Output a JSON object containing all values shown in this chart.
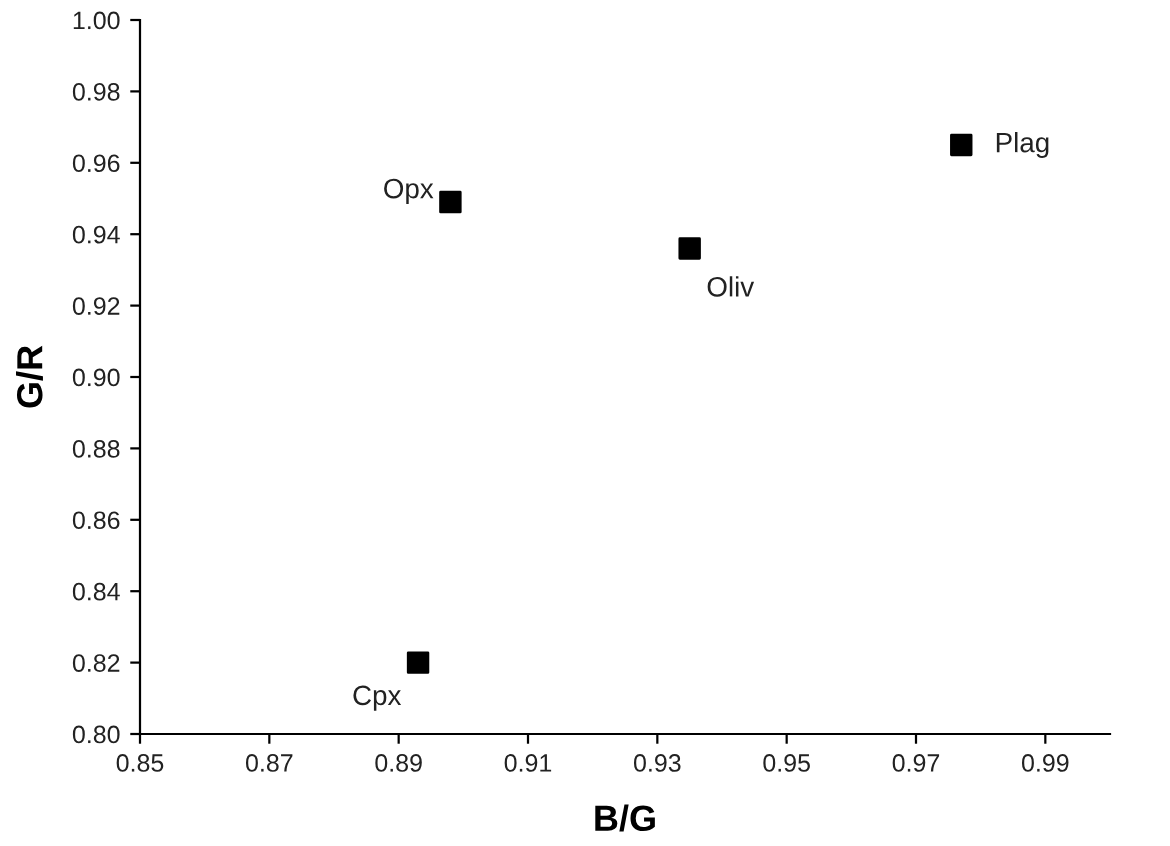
{
  "chart_data": {
    "type": "scatter",
    "xlabel": "B/G",
    "ylabel": "G/R",
    "x": [
      0.977,
      0.898,
      0.935,
      0.893
    ],
    "series": [
      {
        "color": "#000000",
        "values": [
          0.965,
          0.949,
          0.936,
          0.82
        ]
      }
    ],
    "marker": "square",
    "xlim": [
      0.85,
      1.0
    ],
    "xticks": [
      0.85,
      0.87,
      0.89,
      0.91,
      0.93,
      0.95,
      0.97,
      0.99
    ],
    "ylim": [
      0.8,
      1.0
    ],
    "yticks": [
      {
        "value": 0.8,
        "label": "0.80"
      },
      0.82,
      0.84,
      0.86,
      0.88,
      {
        "value": 0.9,
        "label": "0.90"
      },
      0.92,
      0.94,
      0.96,
      0.98,
      {
        "value": 1.0,
        "label": "1.00"
      }
    ],
    "grid": false,
    "legend": false,
    "annotations": [
      {
        "text": "Plag",
        "x": 0.977,
        "y": 0.965
      },
      {
        "text": "Opx",
        "x": 0.898,
        "y": 0.949
      },
      {
        "text": "Oliv",
        "x": 0.935,
        "y": 0.936
      },
      {
        "text": "Cpx",
        "x": 0.893,
        "y": 0.82
      }
    ]
  }
}
